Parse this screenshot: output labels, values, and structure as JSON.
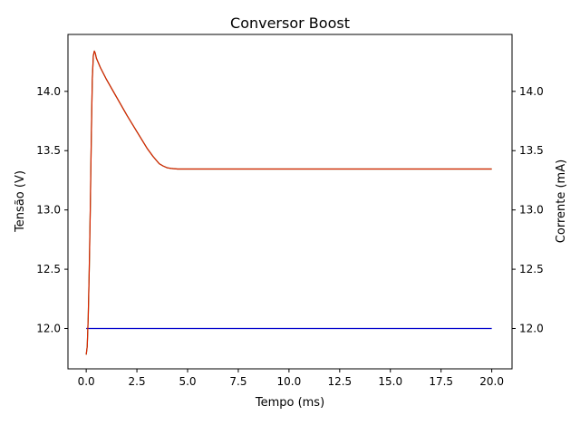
{
  "chart_data": {
    "type": "line",
    "title": "Conversor Boost",
    "xlabel": "Tempo (ms)",
    "ylabel": "Tensão (V)",
    "ylabel_right": "Corrente (mA)",
    "xlim": [
      -0.9,
      21.0
    ],
    "ylim": [
      11.66,
      14.48
    ],
    "ylim_right": [
      11.66,
      14.48
    ],
    "xticks": [
      0.0,
      2.5,
      5.0,
      7.5,
      10.0,
      12.5,
      15.0,
      17.5,
      20.0
    ],
    "xtick_labels": [
      "0.0",
      "2.5",
      "5.0",
      "7.5",
      "10.0",
      "12.5",
      "15.0",
      "17.5",
      "20.0"
    ],
    "yticks": [
      12.0,
      12.5,
      13.0,
      13.5,
      14.0
    ],
    "ytick_labels": [
      "12.0",
      "12.5",
      "13.0",
      "13.5",
      "14.0"
    ],
    "yticks_right": [
      12.0,
      12.5,
      13.0,
      13.5,
      14.0
    ],
    "ytick_labels_right": [
      "12.0",
      "12.5",
      "13.0",
      "13.5",
      "14.0"
    ],
    "grid": false,
    "series": [
      {
        "color": "#0000cc",
        "x": [
          0.0,
          20.0
        ],
        "y": [
          12.0,
          12.0
        ]
      },
      {
        "color": "#228b22",
        "x": [
          0.0,
          0.05,
          0.1,
          0.15,
          0.2,
          0.25,
          0.3,
          0.35,
          0.4,
          0.45,
          0.5,
          0.7,
          1.0,
          1.5,
          2.0,
          2.5,
          3.0,
          3.3,
          3.6,
          3.8,
          4.0,
          4.2,
          4.5,
          5.0,
          7.0,
          10.0,
          15.0,
          20.0
        ],
        "y": [
          11.78,
          11.85,
          12.1,
          12.5,
          13.0,
          13.6,
          14.1,
          14.3,
          14.34,
          14.32,
          14.28,
          14.2,
          14.1,
          13.95,
          13.8,
          13.66,
          13.52,
          13.45,
          13.39,
          13.37,
          13.355,
          13.35,
          13.345,
          13.345,
          13.345,
          13.345,
          13.345,
          13.345
        ]
      },
      {
        "color": "#dd2200",
        "x": [
          0.0,
          0.05,
          0.1,
          0.15,
          0.2,
          0.25,
          0.3,
          0.35,
          0.4,
          0.45,
          0.5,
          0.7,
          1.0,
          1.5,
          2.0,
          2.5,
          3.0,
          3.3,
          3.6,
          3.8,
          4.0,
          4.2,
          4.5,
          5.0,
          7.0,
          10.0,
          15.0,
          20.0
        ],
        "y": [
          11.78,
          11.85,
          12.1,
          12.5,
          13.0,
          13.6,
          14.1,
          14.3,
          14.34,
          14.32,
          14.28,
          14.2,
          14.1,
          13.95,
          13.8,
          13.66,
          13.52,
          13.45,
          13.39,
          13.37,
          13.355,
          13.35,
          13.345,
          13.345,
          13.345,
          13.345,
          13.345,
          13.345
        ]
      }
    ]
  }
}
